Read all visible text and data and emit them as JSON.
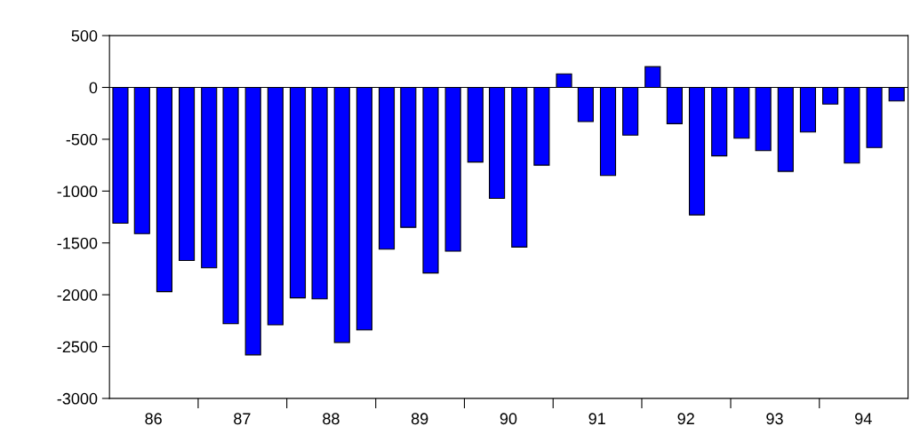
{
  "chart_data": {
    "type": "bar",
    "x": [
      "1986-02-15",
      "1986-05-15",
      "1986-08-15",
      "1986-11-15",
      "1987-02-15",
      "1987-05-15",
      "1987-08-15",
      "1987-11-15",
      "1988-02-15",
      "1988-05-15",
      "1988-08-15",
      "1988-11-15",
      "1989-02-15",
      "1989-05-15",
      "1989-08-15",
      "1989-11-15",
      "1990-02-15",
      "1990-05-15",
      "1990-08-15",
      "1990-11-15",
      "1991-02-15",
      "1991-05-15",
      "1991-08-15",
      "1991-11-15",
      "1992-02-15",
      "1992-05-15",
      "1992-08-15",
      "1992-11-15",
      "1993-02-15",
      "1993-05-15",
      "1993-08-15",
      "1993-11-15",
      "1994-02-15",
      "1994-05-15",
      "1994-08-15",
      "1994-11-15"
    ],
    "values": [
      -1310,
      -1410,
      -1970,
      -1670,
      -1740,
      -2280,
      -2580,
      -2290,
      -2030,
      -2040,
      -2460,
      -2340,
      -1560,
      -1350,
      -1790,
      -1580,
      -720,
      -1070,
      -1540,
      -750,
      130,
      -330,
      -850,
      -460,
      200,
      -350,
      -1230,
      -660,
      -490,
      -610,
      -810,
      -430,
      -160,
      -730,
      -580,
      -130
    ],
    "color": "#0000ff",
    "xlim": [
      "1986-01-01",
      "1995-01-01"
    ],
    "xticks": [
      {
        "value": "1986-07-01",
        "label": "86"
      },
      {
        "value": "1987-01-01",
        "label": null
      },
      {
        "value": "1987-07-01",
        "label": "87"
      },
      {
        "value": "1988-01-01",
        "label": null
      },
      {
        "value": "1988-07-01",
        "label": "88"
      },
      {
        "value": "1989-01-01",
        "label": null
      },
      {
        "value": "1989-07-01",
        "label": "89"
      },
      {
        "value": "1990-01-01",
        "label": null
      },
      {
        "value": "1990-07-01",
        "label": "90"
      },
      {
        "value": "1991-01-01",
        "label": null
      },
      {
        "value": "1991-07-01",
        "label": "91"
      },
      {
        "value": "1992-01-01",
        "label": null
      },
      {
        "value": "1992-07-01",
        "label": "92"
      },
      {
        "value": "1993-01-01",
        "label": null
      },
      {
        "value": "1993-07-01",
        "label": "93"
      },
      {
        "value": "1994-01-01",
        "label": null
      },
      {
        "value": "1994-07-01",
        "label": "94"
      }
    ],
    "ylim": [
      -3000,
      500
    ],
    "yticks": [
      -3000,
      -2500,
      -2000,
      -1500,
      -1000,
      -500,
      0,
      500
    ],
    "ref_lines": [
      {
        "axis": "y",
        "value": 0,
        "color": "#000000"
      }
    ],
    "grid": false,
    "legend": false
  }
}
